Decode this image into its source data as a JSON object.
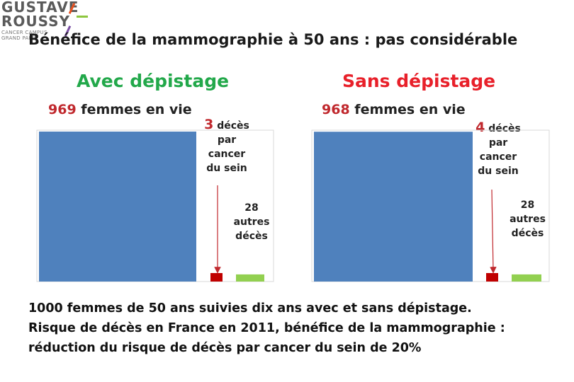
{
  "logo": {
    "line1": "GUSTAVE",
    "line2": "ROUSSY",
    "sub1": "CANCER CAMPUS",
    "sub2": "GRAND PARIS"
  },
  "title": "Bénéfice de la mammographie à 50 ans : pas considérable",
  "footer": {
    "line1": "1000 femmes de 50 ans suivies dix ans avec et sans dépistage.",
    "line2": "Risque de décès en France en 2011, bénéfice de la mammographie :",
    "line3": "réduction du risque de décès par cancer du sein de 20%"
  },
  "colors": {
    "alive": "#4f81bd",
    "breast_cancer_deaths": "#c00000",
    "other_deaths": "#92d050",
    "avec_heading": "#22a84a",
    "sans_heading": "#e8202a",
    "number_highlight": "#c0282d"
  },
  "chart_data": [
    {
      "type": "bar",
      "title": "Avec dépistage",
      "categories": [
        "femmes en vie",
        "décès par cancer du sein",
        "autres décès"
      ],
      "values": [
        969,
        3,
        28
      ],
      "labels": {
        "alive_num": "969",
        "alive_text": "femmes en vie",
        "cancer_num": "3",
        "cancer_lines": [
          "décès",
          "par",
          "cancer",
          "du sein"
        ],
        "other_lines": [
          "28",
          "autres",
          "décès"
        ]
      }
    },
    {
      "type": "bar",
      "title": "Sans dépistage",
      "categories": [
        "femmes en vie",
        "décès par cancer du sein",
        "autres décès"
      ],
      "values": [
        968,
        4,
        28
      ],
      "labels": {
        "alive_num": "968",
        "alive_text": "femmes en vie",
        "cancer_num": "4",
        "cancer_lines": [
          "décès",
          "par",
          "cancer",
          "du sein"
        ],
        "other_lines": [
          "28",
          "autres",
          "décès"
        ]
      }
    }
  ]
}
